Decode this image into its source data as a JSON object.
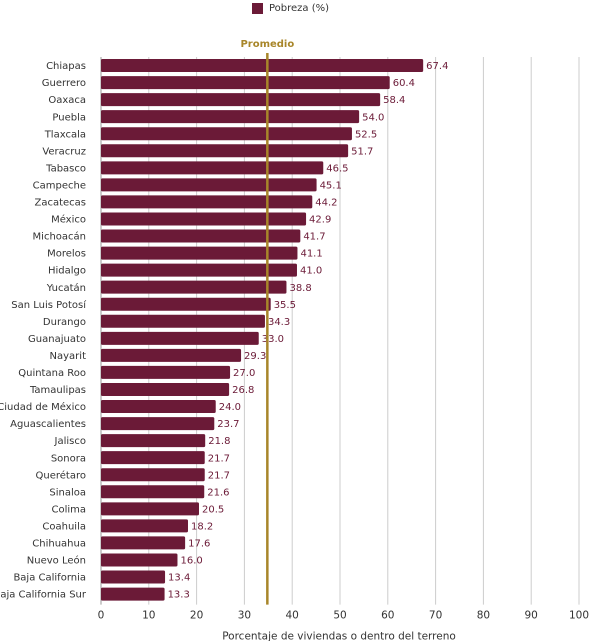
{
  "legend": {
    "label": "Pobreza (%)"
  },
  "reference": {
    "label": "Promedio",
    "value": 34.8,
    "color": "#a8862a"
  },
  "colors": {
    "bar": "#6b1a37",
    "label": "#6b1a37",
    "grid": "#cccccc",
    "text": "#333333"
  },
  "chart_data": {
    "type": "bar",
    "orientation": "horizontal",
    "categories": [
      "Chiapas",
      "Guerrero",
      "Oaxaca",
      "Puebla",
      "Tlaxcala",
      "Veracruz",
      "Tabasco",
      "Campeche",
      "Zacatecas",
      "México",
      "Michoacán",
      "Morelos",
      "Hidalgo",
      "Yucatán",
      "San Luis Potosí",
      "Durango",
      "Guanajuato",
      "Nayarit",
      "Quintana Roo",
      "Tamaulipas",
      "Ciudad de México",
      "Aguascalientes",
      "Jalisco",
      "Sonora",
      "Querétaro",
      "Sinaloa",
      "Colima",
      "Coahuila",
      "Chihuahua",
      "Nuevo León",
      "Baja California",
      "Baja California Sur"
    ],
    "series": [
      {
        "name": "Pobreza (%)",
        "values": [
          67.4,
          60.4,
          58.4,
          54.0,
          52.5,
          51.7,
          46.5,
          45.1,
          44.2,
          42.9,
          41.7,
          41.1,
          41.0,
          38.8,
          35.5,
          34.3,
          33.0,
          29.3,
          27.0,
          26.8,
          24.0,
          23.7,
          21.8,
          21.7,
          21.7,
          21.6,
          20.5,
          18.2,
          17.6,
          16.0,
          13.4,
          13.3
        ]
      }
    ],
    "value_labels": [
      "67.4",
      "60.4",
      "58.4",
      "54.0",
      "52.5",
      "51.7",
      "46.5",
      "45.1",
      "44.2",
      "42.9",
      "41.7",
      "41.1",
      "41.0",
      "38.8",
      "35.5",
      "34.3",
      "33.0",
      "29.3",
      "27.0",
      "26.8",
      "24.0",
      "23.7",
      "21.8",
      "21.7",
      "21.7",
      "21.6",
      "20.5",
      "18.2",
      "17.6",
      "16.0",
      "13.4",
      "13.3"
    ],
    "xlim": [
      0,
      100
    ],
    "xticks": [
      0,
      10,
      20,
      30,
      40,
      50,
      60,
      70,
      80,
      90,
      100
    ],
    "xlabel": "Porcentaje de viviendas o dentro del terreno",
    "ylabel": "",
    "grid": true,
    "legend_position": "top"
  }
}
